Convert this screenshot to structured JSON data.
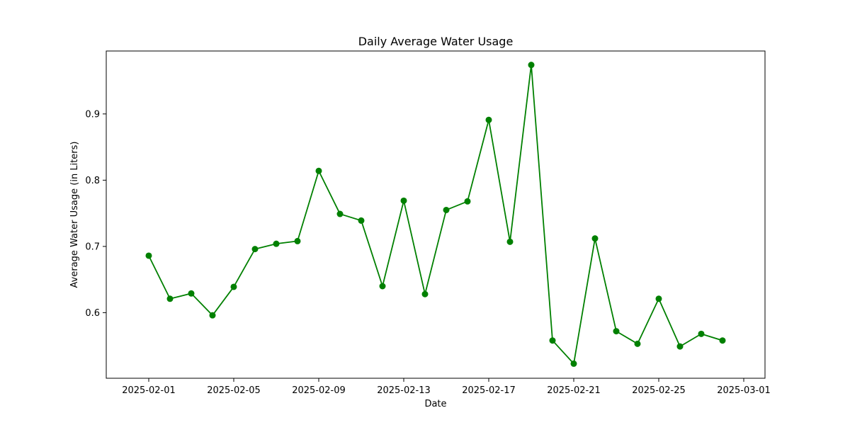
{
  "chart_data": {
    "type": "line",
    "title": "Daily Average Water Usage",
    "xlabel": "Date",
    "ylabel": "Average Water Usage (in Liters)",
    "x_ticks": [
      "2025-02-01",
      "2025-02-05",
      "2025-02-09",
      "2025-02-13",
      "2025-02-17",
      "2025-02-21",
      "2025-02-25",
      "2025-03-01"
    ],
    "y_ticks": [
      "0.6",
      "0.7",
      "0.8",
      "0.9"
    ],
    "xlim": [
      "2025-01-30",
      "2025-03-02"
    ],
    "ylim": [
      0.501,
      0.995
    ],
    "grid": false,
    "series": [
      {
        "color": "#008000",
        "marker": "circle",
        "x": [
          "2025-02-01",
          "2025-02-02",
          "2025-02-03",
          "2025-02-04",
          "2025-02-05",
          "2025-02-06",
          "2025-02-07",
          "2025-02-08",
          "2025-02-09",
          "2025-02-10",
          "2025-02-11",
          "2025-02-12",
          "2025-02-13",
          "2025-02-14",
          "2025-02-15",
          "2025-02-16",
          "2025-02-17",
          "2025-02-18",
          "2025-02-19",
          "2025-02-20",
          "2025-02-21",
          "2025-02-22",
          "2025-02-23",
          "2025-02-24",
          "2025-02-25",
          "2025-02-26",
          "2025-02-27",
          "2025-02-28"
        ],
        "values": [
          0.686,
          0.621,
          0.629,
          0.596,
          0.639,
          0.696,
          0.704,
          0.708,
          0.814,
          0.749,
          0.739,
          0.64,
          0.769,
          0.628,
          0.755,
          0.768,
          0.891,
          0.707,
          0.974,
          0.558,
          0.523,
          0.712,
          0.572,
          0.553,
          0.621,
          0.549,
          0.568,
          0.558
        ]
      }
    ]
  }
}
